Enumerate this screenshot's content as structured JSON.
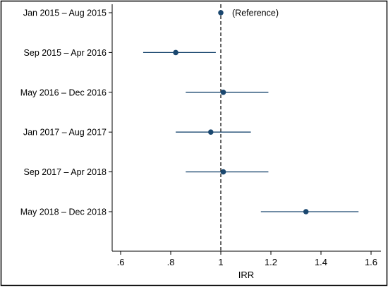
{
  "chart_data": {
    "type": "scatter",
    "title": "",
    "xlabel": "IRR",
    "ylabel": "",
    "xlim": [
      0.57,
      1.63
    ],
    "xticks": [
      0.6,
      0.8,
      1,
      1.2,
      1.4,
      1.6
    ],
    "xtick_labels": [
      ".6",
      ".8",
      "1",
      "1.2",
      "1.4",
      "1.6"
    ],
    "reference_line": 1,
    "grid": false,
    "categories": [
      "Jan 2015 – Aug 2015",
      "Sep 2015 – Apr 2016",
      "May 2016 – Dec 2016",
      "Jan 2017 – Aug 2017",
      "Sep 2017 – Apr 2018",
      "May 2018 – Dec 2018"
    ],
    "points": [
      {
        "estimate": 1.0,
        "ci_low": null,
        "ci_high": null,
        "note": "(Reference)"
      },
      {
        "estimate": 0.82,
        "ci_low": 0.69,
        "ci_high": 0.98,
        "note": ""
      },
      {
        "estimate": 1.01,
        "ci_low": 0.86,
        "ci_high": 1.19,
        "note": ""
      },
      {
        "estimate": 0.96,
        "ci_low": 0.82,
        "ci_high": 1.12,
        "note": ""
      },
      {
        "estimate": 1.01,
        "ci_low": 0.86,
        "ci_high": 1.19,
        "note": ""
      },
      {
        "estimate": 1.34,
        "ci_low": 1.16,
        "ci_high": 1.55,
        "note": ""
      }
    ],
    "colors": {
      "marker": "#1a476f",
      "frame": "#000000",
      "background": "#ffffff"
    }
  }
}
